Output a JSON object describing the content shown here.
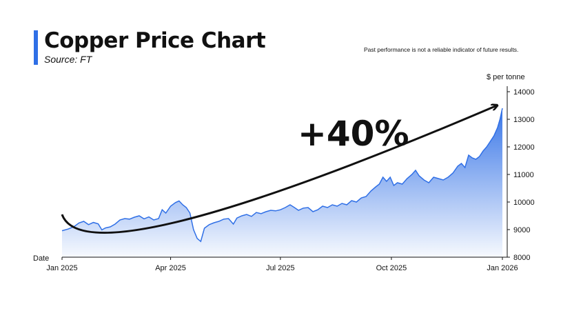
{
  "header": {
    "title": "Copper Price Chart",
    "source": "Source: FT",
    "disclaimer": "Past performance is not a reliable indicator of future results."
  },
  "chart_data": {
    "type": "area",
    "title": "Copper Price Chart",
    "subtitle": "Source: FT",
    "xlabel": "Date",
    "ylabel": "$ per tonne",
    "annotation": "+40%",
    "y_axis_side": "right",
    "ylim": [
      8000,
      14000
    ],
    "yticks": [
      "14000",
      "13000",
      "12000",
      "11000",
      "10000",
      "9000",
      "8000"
    ],
    "xticks": [
      {
        "label": "Jan 2025",
        "t": 0
      },
      {
        "label": "Apr 2025",
        "t": 90
      },
      {
        "label": "Jul 2025",
        "t": 181
      },
      {
        "label": "Oct 2025",
        "t": 273
      },
      {
        "label": "Jan 2026",
        "t": 365
      }
    ],
    "x_unit": "days since 1 Jan 2025",
    "series": [
      {
        "name": "Copper",
        "color": "#2f6fe6",
        "points": [
          [
            0,
            8960
          ],
          [
            5,
            9020
          ],
          [
            10,
            9110
          ],
          [
            14,
            9240
          ],
          [
            18,
            9300
          ],
          [
            22,
            9180
          ],
          [
            26,
            9260
          ],
          [
            30,
            9210
          ],
          [
            33,
            8990
          ],
          [
            36,
            9060
          ],
          [
            40,
            9100
          ],
          [
            44,
            9200
          ],
          [
            48,
            9350
          ],
          [
            52,
            9400
          ],
          [
            56,
            9380
          ],
          [
            60,
            9450
          ],
          [
            64,
            9500
          ],
          [
            68,
            9390
          ],
          [
            72,
            9460
          ],
          [
            76,
            9350
          ],
          [
            80,
            9400
          ],
          [
            83,
            9720
          ],
          [
            86,
            9600
          ],
          [
            90,
            9850
          ],
          [
            94,
            9980
          ],
          [
            97,
            10040
          ],
          [
            100,
            9900
          ],
          [
            103,
            9800
          ],
          [
            106,
            9600
          ],
          [
            109,
            9000
          ],
          [
            112,
            8680
          ],
          [
            115,
            8570
          ],
          [
            118,
            9050
          ],
          [
            122,
            9180
          ],
          [
            126,
            9250
          ],
          [
            130,
            9300
          ],
          [
            134,
            9380
          ],
          [
            138,
            9400
          ],
          [
            142,
            9200
          ],
          [
            145,
            9420
          ],
          [
            149,
            9500
          ],
          [
            153,
            9550
          ],
          [
            157,
            9480
          ],
          [
            161,
            9620
          ],
          [
            165,
            9580
          ],
          [
            169,
            9650
          ],
          [
            173,
            9700
          ],
          [
            177,
            9680
          ],
          [
            181,
            9720
          ],
          [
            185,
            9800
          ],
          [
            189,
            9900
          ],
          [
            192,
            9820
          ],
          [
            196,
            9700
          ],
          [
            200,
            9780
          ],
          [
            204,
            9800
          ],
          [
            208,
            9650
          ],
          [
            212,
            9720
          ],
          [
            216,
            9850
          ],
          [
            220,
            9800
          ],
          [
            224,
            9900
          ],
          [
            228,
            9850
          ],
          [
            232,
            9950
          ],
          [
            236,
            9900
          ],
          [
            240,
            10050
          ],
          [
            244,
            10000
          ],
          [
            248,
            10150
          ],
          [
            252,
            10200
          ],
          [
            256,
            10400
          ],
          [
            260,
            10550
          ],
          [
            263,
            10650
          ],
          [
            266,
            10900
          ],
          [
            269,
            10750
          ],
          [
            272,
            10900
          ],
          [
            275,
            10600
          ],
          [
            278,
            10700
          ],
          [
            282,
            10650
          ],
          [
            286,
            10850
          ],
          [
            290,
            11000
          ],
          [
            293,
            11150
          ],
          [
            296,
            10950
          ],
          [
            300,
            10800
          ],
          [
            304,
            10700
          ],
          [
            308,
            10900
          ],
          [
            312,
            10850
          ],
          [
            316,
            10800
          ],
          [
            320,
            10900
          ],
          [
            324,
            11050
          ],
          [
            328,
            11300
          ],
          [
            331,
            11400
          ],
          [
            334,
            11250
          ],
          [
            337,
            11700
          ],
          [
            340,
            11600
          ],
          [
            343,
            11550
          ],
          [
            346,
            11650
          ],
          [
            349,
            11850
          ],
          [
            352,
            12000
          ],
          [
            355,
            12200
          ],
          [
            358,
            12400
          ],
          [
            361,
            12700
          ],
          [
            363,
            13000
          ],
          [
            365,
            13400
          ]
        ]
      }
    ],
    "trend_arrow": {
      "from": [
        0,
        9550
      ],
      "via": [
        100,
        9330
      ],
      "to": [
        365,
        13400
      ]
    }
  }
}
